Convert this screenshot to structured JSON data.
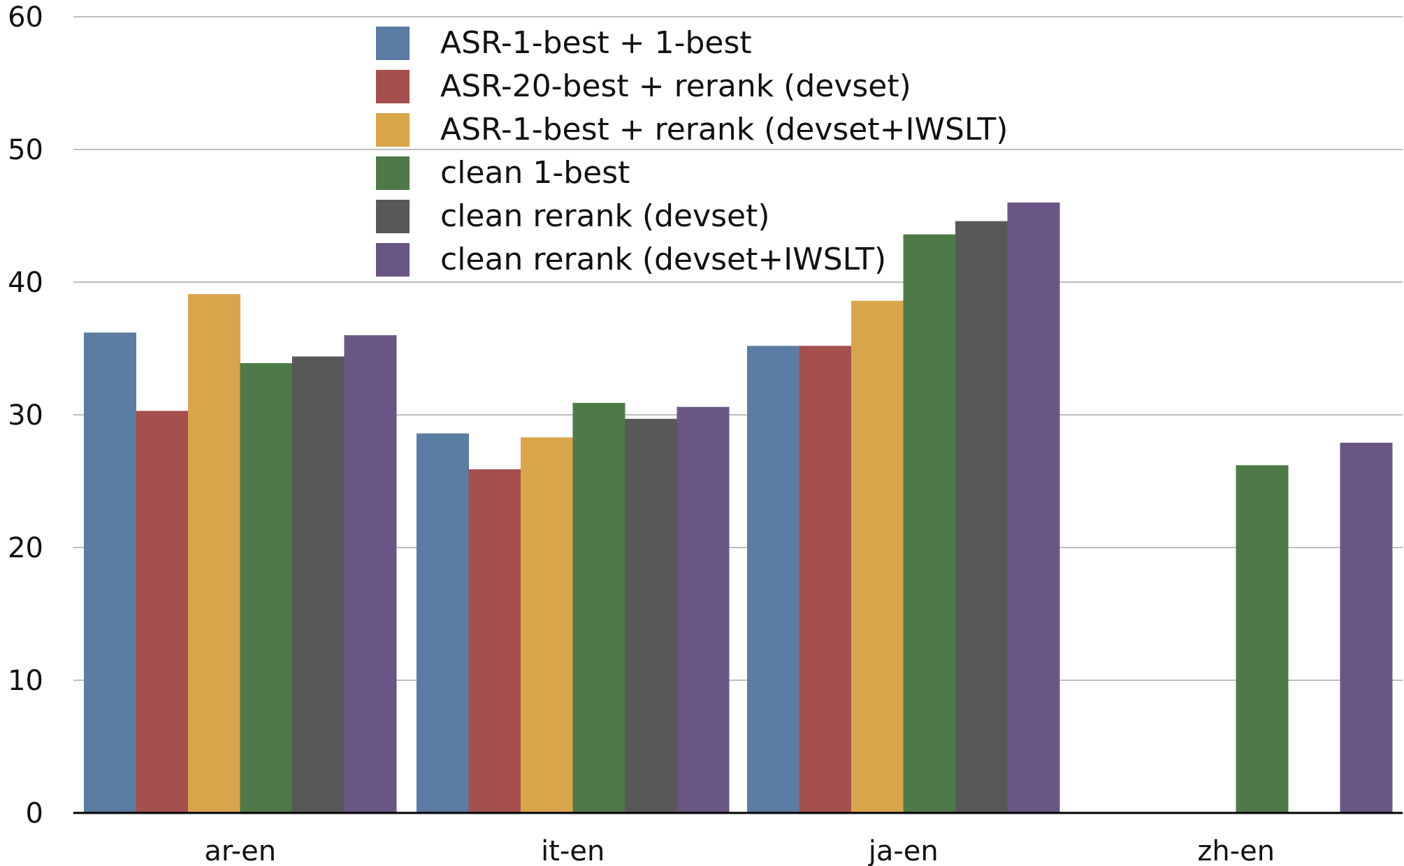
{
  "chart_data": {
    "type": "bar",
    "title": "",
    "xlabel": "",
    "ylabel": "",
    "ylim": [
      0,
      60
    ],
    "yticks": [
      0,
      10,
      20,
      30,
      40,
      50,
      60
    ],
    "grid": true,
    "legend_position": "top-center",
    "categories": [
      "ar-en",
      "it-en",
      "ja-en",
      "zh-en"
    ],
    "series": [
      {
        "name": "ASR-1-best + 1-best",
        "color": "#5b7ca3",
        "values": [
          36.2,
          28.6,
          35.2,
          null
        ]
      },
      {
        "name": "ASR-20-best + rerank (devset)",
        "color": "#a54f4f",
        "values": [
          30.3,
          25.9,
          35.2,
          null
        ]
      },
      {
        "name": "ASR-1-best + rerank (devset+IWSLT)",
        "color": "#d9a54a",
        "values": [
          39.1,
          28.3,
          38.6,
          null
        ]
      },
      {
        "name": "clean 1-best",
        "color": "#4e7a48",
        "values": [
          33.9,
          30.9,
          43.6,
          26.2
        ]
      },
      {
        "name": "clean rerank (devset)",
        "color": "#585858",
        "values": [
          34.4,
          29.7,
          44.6,
          null
        ]
      },
      {
        "name": "clean rerank (devset+IWSLT)",
        "color": "#6a5684",
        "values": [
          36.0,
          30.6,
          46.0,
          27.9
        ]
      }
    ]
  }
}
